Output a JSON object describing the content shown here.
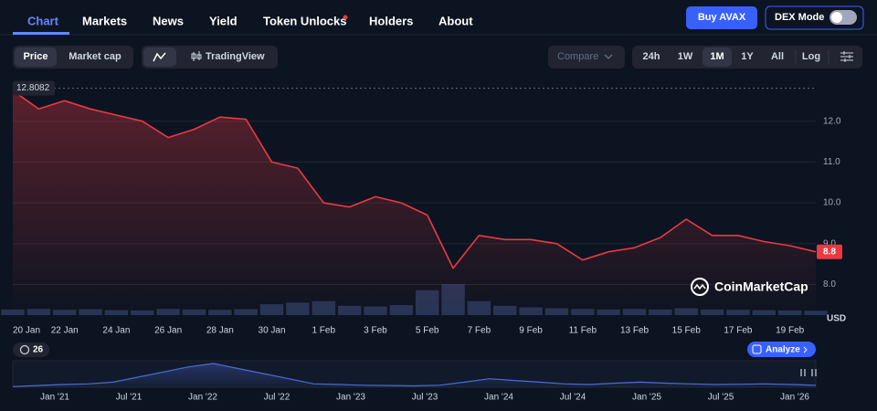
{
  "nav": {
    "tabs": [
      "Chart",
      "Markets",
      "News",
      "Yield",
      "Token Unlocks",
      "Holders",
      "About"
    ],
    "buy": "Buy AVAX",
    "dex": "DEX Mode"
  },
  "toolbar": {
    "modes": [
      "Price",
      "Market cap"
    ],
    "tradingview": "TradingView",
    "compare": "Compare",
    "ranges": [
      "24h",
      "1W",
      "1M",
      "1Y",
      "All",
      "Log"
    ]
  },
  "chart_data": {
    "type": "line",
    "color": "#ea3943",
    "categories": [
      "20 Jan",
      null,
      "22 Jan",
      null,
      "24 Jan",
      null,
      "26 Jan",
      null,
      "28 Jan",
      null,
      "30 Jan",
      null,
      "1 Feb",
      null,
      "3 Feb",
      null,
      "5 Feb",
      null,
      "7 Feb",
      null,
      "9 Feb",
      null,
      "11 Feb",
      null,
      "13 Feb",
      null,
      "15 Feb",
      null,
      "17 Feb",
      null,
      "19 Feb",
      null
    ],
    "values": [
      12.75,
      12.3,
      12.5,
      12.3,
      12.15,
      12.0,
      11.6,
      11.8,
      12.1,
      12.05,
      11.0,
      10.85,
      10.0,
      9.9,
      10.15,
      10.0,
      9.7,
      8.4,
      9.2,
      9.1,
      9.1,
      9.0,
      8.6,
      8.8,
      8.9,
      9.15,
      9.6,
      9.2,
      9.2,
      9.05,
      8.95,
      8.8
    ],
    "volume": [
      18,
      20,
      17,
      19,
      16,
      15,
      20,
      18,
      17,
      19,
      35,
      40,
      45,
      30,
      28,
      32,
      80,
      100,
      45,
      30,
      25,
      22,
      20,
      18,
      20,
      18,
      22,
      18,
      17,
      16,
      15,
      14
    ],
    "ylim": [
      7.25,
      13.0
    ],
    "yticks": [
      {
        "value": 8,
        "label": "8.0"
      },
      {
        "value": 9,
        "label": "9.0"
      },
      {
        "value": 10,
        "label": "10.0"
      },
      {
        "value": 11,
        "label": "11.0"
      },
      {
        "value": 12,
        "label": "12.0"
      }
    ],
    "grid": true,
    "max_label": 12.8082,
    "last_value": 8.8,
    "currency": "USD",
    "watermark": "CoinMarketCap"
  },
  "navigator": {
    "labels": [
      "Jan '21",
      "Jul '21",
      "Jan '22",
      "Jul '22",
      "Jan '23",
      "Jul '23",
      "Jan '24",
      "Jul '24",
      "Jan '25",
      "Jul '25",
      "Jan '26"
    ],
    "values": [
      2,
      5,
      8,
      10,
      15,
      30,
      45,
      60,
      70,
      55,
      40,
      25,
      10,
      8,
      6,
      5,
      4,
      6,
      15,
      25,
      20,
      15,
      10,
      8,
      12,
      15,
      12,
      10,
      8,
      9,
      10,
      8,
      6
    ]
  },
  "footer": {
    "count": 26,
    "analyze": "Analyze"
  }
}
